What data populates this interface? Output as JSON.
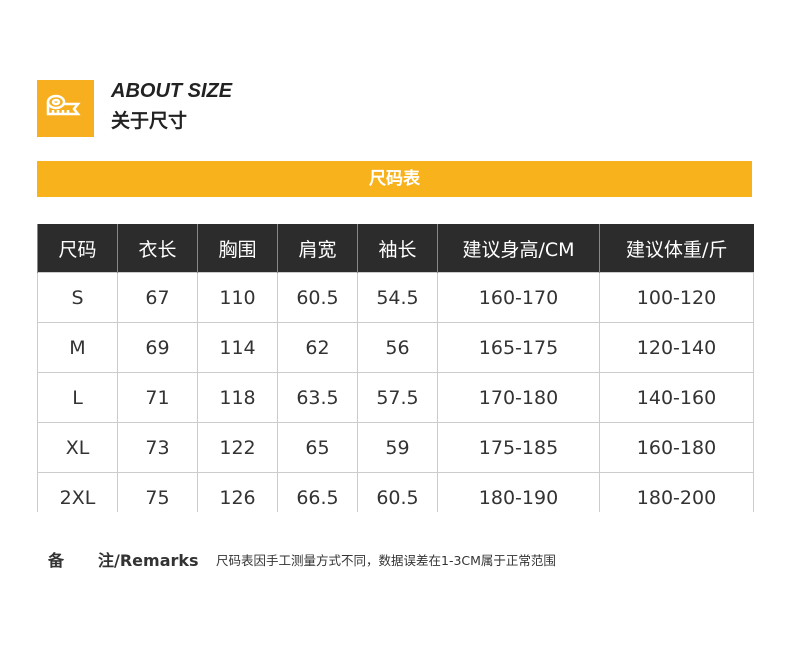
{
  "header": {
    "title_en": "ABOUT SIZE",
    "title_cn": "关于尺寸",
    "icon": "tape-measure-icon",
    "accent": "#f8b21b"
  },
  "banner": "尺码表",
  "table": {
    "headers": [
      "尺码",
      "衣长",
      "胸围",
      "肩宽",
      "袖长",
      "建议身高/CM",
      "建议体重/斤"
    ],
    "rows": [
      [
        "S",
        "67",
        "110",
        "60.5",
        "54.5",
        "160-170",
        "100-120"
      ],
      [
        "M",
        "69",
        "114",
        "62",
        "56",
        "165-175",
        "120-140"
      ],
      [
        "L",
        "71",
        "118",
        "63.5",
        "57.5",
        "170-180",
        "140-160"
      ],
      [
        "XL",
        "73",
        "122",
        "65",
        "59",
        "175-185",
        "160-180"
      ],
      [
        "2XL",
        "75",
        "126",
        "66.5",
        "60.5",
        "180-190",
        "180-200"
      ]
    ]
  },
  "remarks": {
    "label1": "备",
    "label2": "注/Remarks",
    "text": "尺码表因手工测量方式不同，数据误差在1-3CM属于正常范围"
  }
}
